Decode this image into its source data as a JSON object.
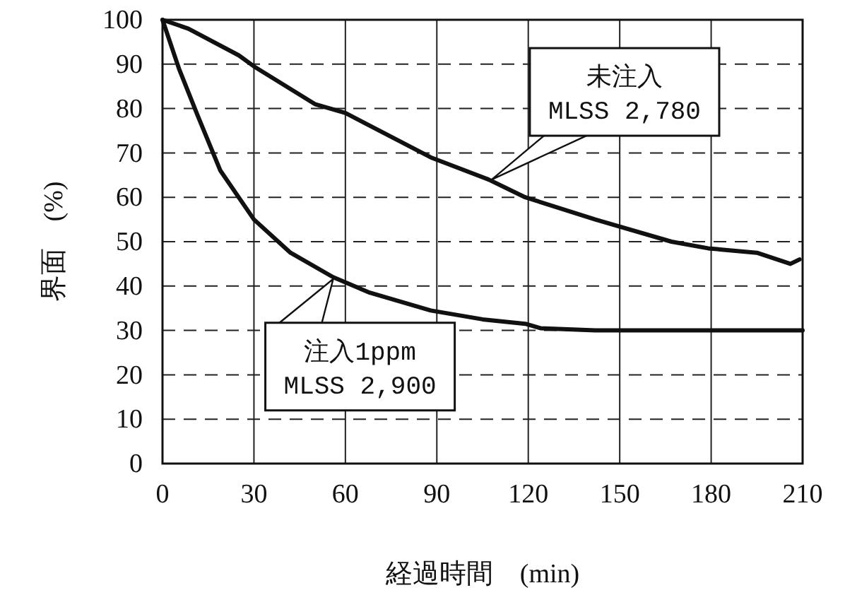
{
  "chart_data": {
    "type": "line",
    "xlabel": "経過時間　(min)",
    "ylabel": "界面　(%)",
    "xlim": [
      0,
      210
    ],
    "xticks": [
      0,
      30,
      60,
      90,
      120,
      150,
      180,
      210
    ],
    "ylim": [
      0,
      100
    ],
    "yticks": [
      0,
      10,
      20,
      30,
      40,
      50,
      60,
      70,
      80,
      90,
      100
    ],
    "grid": true,
    "marker": "none",
    "line_style": "solid",
    "series": [
      {
        "color": "#111111",
        "x": [
          0,
          8.5,
          25,
          30,
          50,
          60,
          88,
          107,
          119,
          142,
          167,
          179,
          195,
          206,
          209
        ],
        "values": [
          100,
          98,
          92,
          89.5,
          81,
          79,
          69,
          64,
          60,
          55,
          50,
          48.5,
          47.5,
          45,
          46
        ]
      },
      {
        "color": "#111111",
        "x": [
          0,
          5.4,
          11.5,
          19,
          30,
          42,
          56,
          68,
          88,
          105,
          119,
          124,
          142,
          170,
          210
        ],
        "values": [
          100,
          89,
          78.5,
          66,
          55,
          47.5,
          42,
          38.5,
          34.5,
          32.5,
          31.5,
          30.5,
          30,
          30,
          30
        ]
      }
    ],
    "annotations": [
      {
        "text": "未注入\nMLSS 2,780",
        "x": 108,
        "y": 64
      },
      {
        "text": "注入1ppm\nMLSS 2,900",
        "x": 56,
        "y": 41.6
      }
    ]
  }
}
